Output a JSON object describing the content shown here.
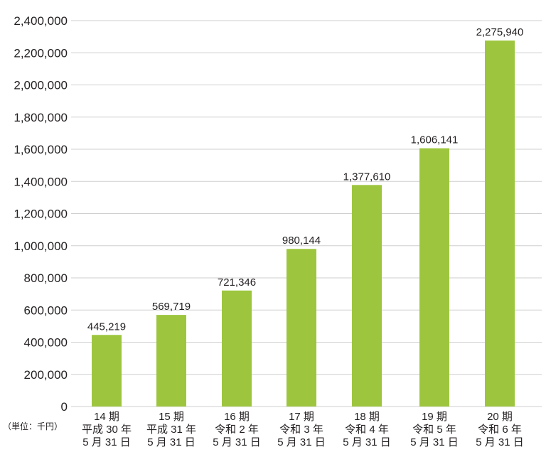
{
  "chart_data": {
    "type": "bar",
    "unit_label": "（単位：千円）",
    "categories": [
      [
        "14 期",
        "平成 30 年",
        "5 月 31 日"
      ],
      [
        "15 期",
        "平成 31 年",
        "5 月 31 日"
      ],
      [
        "16 期",
        "令和 2 年",
        "5 月 31 日"
      ],
      [
        "17 期",
        "令和 3 年",
        "5 月 31 日"
      ],
      [
        "18 期",
        "令和 4 年",
        "5 月 31 日"
      ],
      [
        "19 期",
        "令和 5 年",
        "5 月 31 日"
      ],
      [
        "20 期",
        "令和 6 年",
        "5 月 31 日"
      ]
    ],
    "values": [
      445219,
      569719,
      721346,
      980144,
      1377610,
      1606141,
      2275940
    ],
    "value_labels": [
      "445,219",
      "569,719",
      "721,346",
      "980,144",
      "1,377,610",
      "1,606,141",
      "2,275,940"
    ],
    "ylim": [
      0,
      2400000
    ],
    "yticks": [
      "0",
      "200,000",
      "400,000",
      "600,000",
      "800,000",
      "1,000,000",
      "1,200,000",
      "1,400,000",
      "1,600,000",
      "1,800,000",
      "2,000,000",
      "2,200,000",
      "2,400,000"
    ],
    "grid": true,
    "bar_color": "#9dc63e",
    "grid_color": "#cfcfcf"
  }
}
